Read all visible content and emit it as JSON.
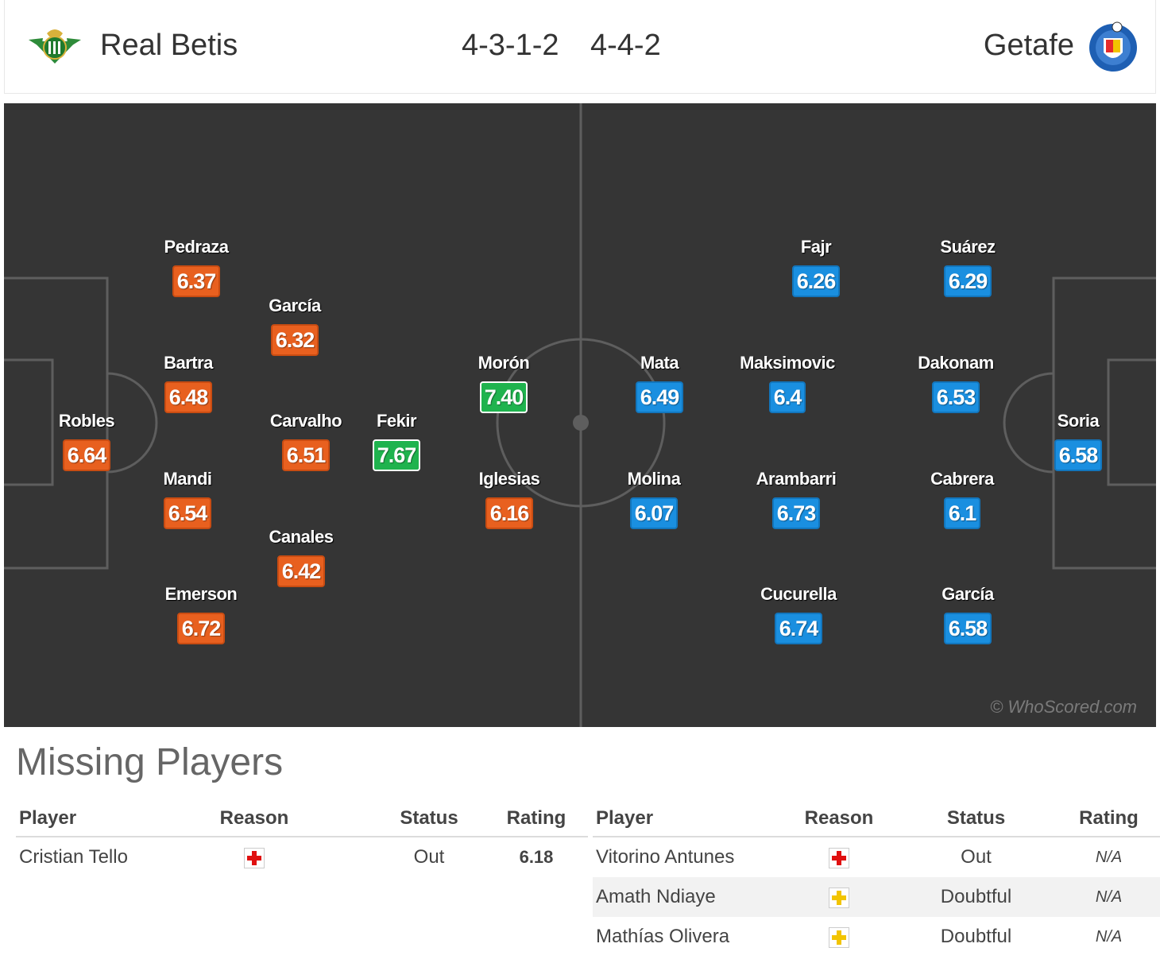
{
  "header": {
    "home_team": "Real Betis",
    "away_team": "Getafe",
    "home_formation": "4-3-1-2",
    "away_formation": "4-4-2"
  },
  "colors": {
    "home_rating": "#e8601f",
    "away_rating": "#1a8fe0",
    "best_rating": "#1fb34e",
    "pitch": "#353535"
  },
  "pitch": {
    "home_players": [
      {
        "name": "Robles",
        "rating": "6.64"
      },
      {
        "name": "Pedraza",
        "rating": "6.37"
      },
      {
        "name": "Bartra",
        "rating": "6.48"
      },
      {
        "name": "Mandi",
        "rating": "6.54"
      },
      {
        "name": "Emerson",
        "rating": "6.72"
      },
      {
        "name": "García",
        "rating": "6.32"
      },
      {
        "name": "Carvalho",
        "rating": "6.51"
      },
      {
        "name": "Canales",
        "rating": "6.42"
      },
      {
        "name": "Fekir",
        "rating": "7.67"
      },
      {
        "name": "Morón",
        "rating": "7.40"
      },
      {
        "name": "Iglesias",
        "rating": "6.16"
      }
    ],
    "away_players": [
      {
        "name": "Mata",
        "rating": "6.49"
      },
      {
        "name": "Molina",
        "rating": "6.07"
      },
      {
        "name": "Fajr",
        "rating": "6.26"
      },
      {
        "name": "Maksimovic",
        "rating": "6.4"
      },
      {
        "name": "Arambarri",
        "rating": "6.73"
      },
      {
        "name": "Cucurella",
        "rating": "6.74"
      },
      {
        "name": "Suárez",
        "rating": "6.29"
      },
      {
        "name": "Dakonam",
        "rating": "6.53"
      },
      {
        "name": "Cabrera",
        "rating": "6.1"
      },
      {
        "name": "García",
        "rating": "6.58"
      },
      {
        "name": "Soria",
        "rating": "6.58"
      }
    ],
    "watermark": "© WhoScored.com"
  },
  "missing": {
    "title": "Missing Players",
    "columns": [
      "Player",
      "Reason",
      "Status",
      "Rating"
    ],
    "home": [
      {
        "player": "Cristian Tello",
        "reason_icon": "injury-icon",
        "status": "Out",
        "rating": "6.18"
      }
    ],
    "away": [
      {
        "player": "Vitorino Antunes",
        "reason_icon": "injury-icon",
        "status": "Out",
        "rating": "N/A"
      },
      {
        "player": "Amath Ndiaye",
        "reason_icon": "doubtful-icon",
        "status": "Doubtful",
        "rating": "N/A"
      },
      {
        "player": "Mathías Olivera",
        "reason_icon": "doubtful-icon",
        "status": "Doubtful",
        "rating": "N/A"
      }
    ]
  }
}
